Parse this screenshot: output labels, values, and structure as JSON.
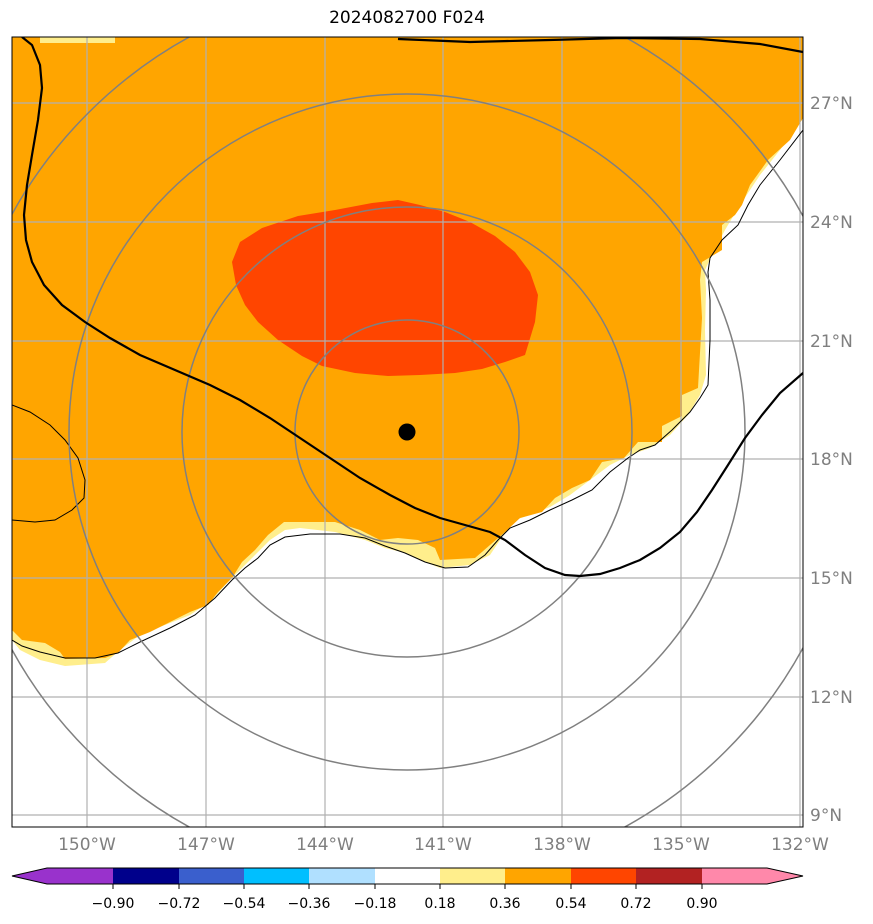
{
  "title": "2024082700 F024",
  "map": {
    "lon_labels": [
      "150°W",
      "147°W",
      "144°W",
      "141°W",
      "138°W",
      "135°W",
      "132°W"
    ],
    "lat_labels": [
      "27°N",
      "24°N",
      "21°N",
      "18°N",
      "15°N",
      "12°N",
      "9°N"
    ],
    "center_marker": "storm-center-dot",
    "colors": {
      "field_moderate": "#ffa500",
      "field_strong": "#ff4500",
      "field_weak": "#ffee8c",
      "grid": "#b0b0b0",
      "range_rings": "#808080",
      "contour": "#000000"
    }
  },
  "colorbar": {
    "ticks": [
      "−0.90",
      "−0.72",
      "−0.54",
      "−0.36",
      "−0.18",
      "0.18",
      "0.36",
      "0.54",
      "0.72",
      "0.90"
    ],
    "colors": [
      "#9932cc",
      "#00008b",
      "#3a5fcd",
      "#00bfff",
      "#b0e0ff",
      "#ffffff",
      "#ffee8c",
      "#ffa500",
      "#ff4500",
      "#b22222",
      "#ff88aa"
    ]
  }
}
